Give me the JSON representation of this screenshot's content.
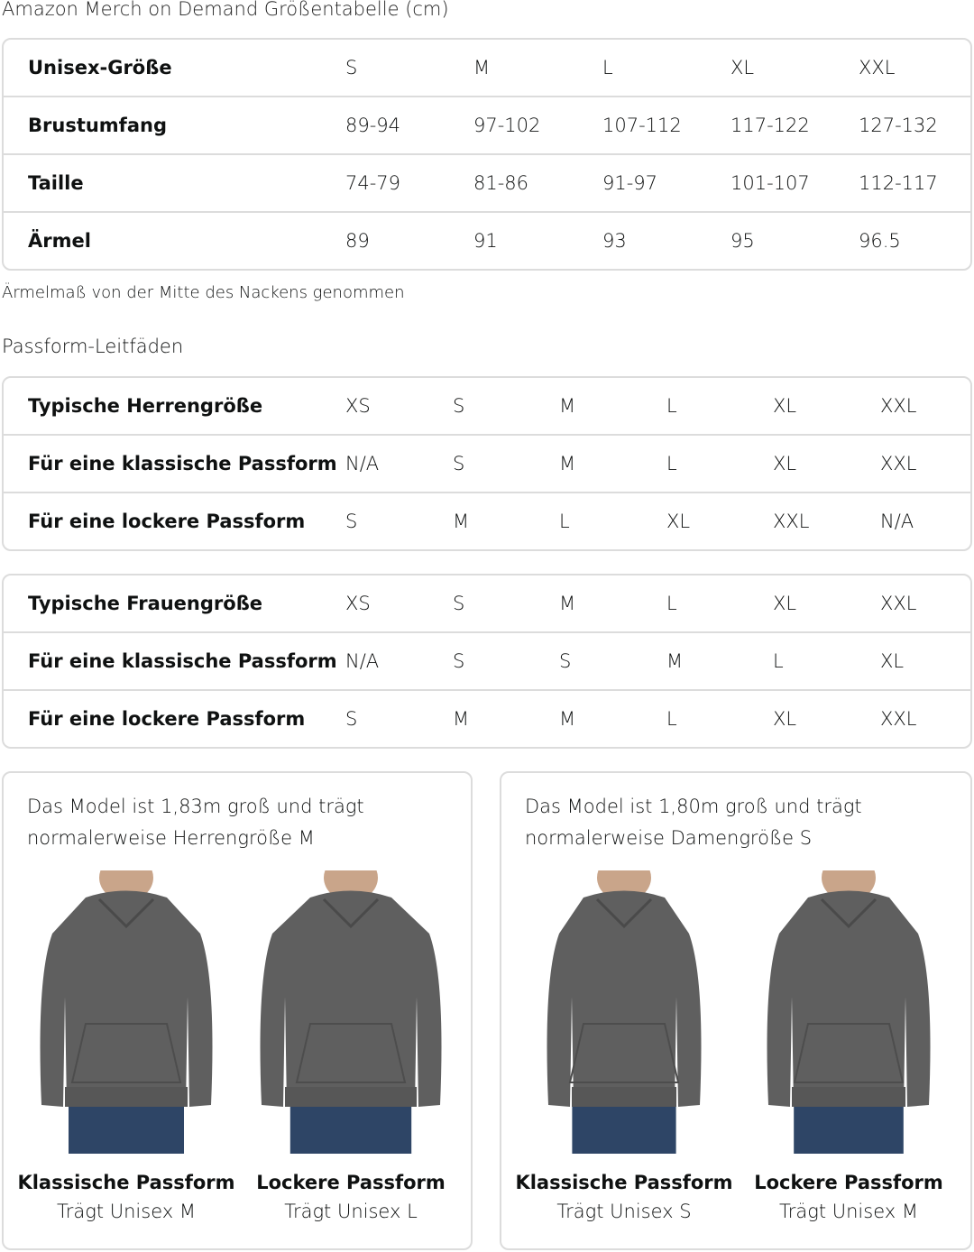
{
  "title": "Amazon Merch on Demand Größentabelle (cm)",
  "size_table": {
    "rows": [
      [
        "Unisex-Größe",
        "S",
        "M",
        "L",
        "XL",
        "XXL"
      ],
      [
        "Brustumfang",
        "89-94",
        "97-102",
        "107-112",
        "117-122",
        "127-132"
      ],
      [
        "Taille",
        "74-79",
        "81-86",
        "91-97",
        "101-107",
        "112-117"
      ],
      [
        "Ärmel",
        "89",
        "91",
        "93",
        "95",
        "96.5"
      ]
    ]
  },
  "note": "Ärmelmaß von der Mitte des Nackens genommen",
  "fit_title": "Passform-Leitfäden",
  "men_table": {
    "rows": [
      [
        "Typische Herrengröße",
        "XS",
        "S",
        "M",
        "L",
        "XL",
        "XXL"
      ],
      [
        "Für eine klassische Passform",
        "N/A",
        "S",
        "M",
        "L",
        "XL",
        "XXL"
      ],
      [
        "Für eine lockere Passform",
        "S",
        "M",
        "L",
        "XL",
        "XXL",
        "N/A"
      ]
    ]
  },
  "women_table": {
    "rows": [
      [
        "Typische Frauengröße",
        "XS",
        "S",
        "M",
        "L",
        "XL",
        "XXL"
      ],
      [
        "Für eine klassische Passform",
        "N/A",
        "S",
        "S",
        "M",
        "L",
        "XL"
      ],
      [
        "Für eine lockere Passform",
        "S",
        "M",
        "M",
        "L",
        "XL",
        "XXL"
      ]
    ]
  },
  "cards": [
    {
      "text": "Das Model ist 1,83m groß und trägt normalerweise Herrengröße M",
      "figures": [
        {
          "title": "Klassische Passform",
          "sub": "Trägt Unisex M"
        },
        {
          "title": "Lockere Passform",
          "sub": "Trägt Unisex L"
        }
      ]
    },
    {
      "text": "Das Model ist 1,80m groß und trägt normalerweise Damengröße S",
      "figures": [
        {
          "title": "Klassische Passform",
          "sub": "Trägt Unisex S"
        },
        {
          "title": "Lockere Passform",
          "sub": "Trägt Unisex M"
        }
      ]
    }
  ],
  "colors": {
    "hoodie": "#5f5f5f",
    "jeans": "#2e4566",
    "border": "#dcdcdc"
  }
}
